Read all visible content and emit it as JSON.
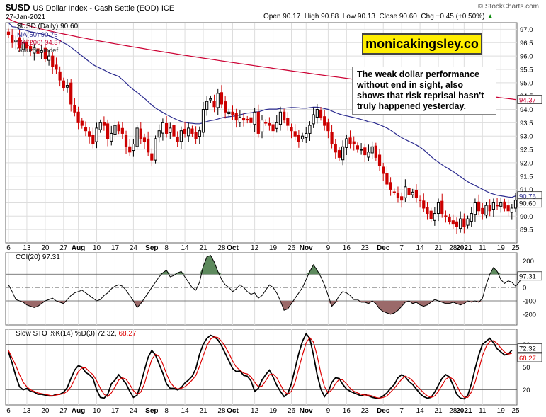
{
  "header": {
    "symbol": "$USD",
    "name": "US Dollar Index - Cash Settle (EOD)",
    "exchange": "ICE",
    "date": "27-Jan-2021",
    "open": "Open 90.17",
    "high": "High 90.88",
    "low": "Low 90.13",
    "close": "Close 90.60",
    "change": "Chg +0.45 (+0.50%)",
    "change_arrow": "▲",
    "watermark": "© StockCharts.com"
  },
  "legend": {
    "main": "$USD (Daily) 90.60",
    "ma50": "MA(50) 90.76",
    "ma200": "MA(200) 94.37",
    "volume": "Volume undef"
  },
  "brand_label": "monicakingsley.co",
  "annotation": "The weak dollar performance without end in sight, also shows that risk reprisal hasn't truly happened yesterday.",
  "colors": {
    "up": "#000000",
    "down": "#cc0000",
    "ma50": "#2b2b8f",
    "ma200": "#cc0033",
    "cci_pos_fill": "#5d8a5d",
    "cci_neg_fill": "#9b6a6a",
    "stoch_k": "#000000",
    "stoch_d": "#dd0000",
    "grid": "#dddddd",
    "price_tag": "#000000"
  },
  "chart_data": [
    {
      "type": "candlestick",
      "title": "$USD (Daily) 90.60",
      "ylim": [
        89.0,
        97.25
      ],
      "yticks": [
        89.5,
        90.0,
        90.5,
        91.0,
        91.5,
        92.0,
        92.5,
        93.0,
        93.5,
        94.0,
        94.5,
        95.0,
        95.5,
        96.0,
        96.5,
        97.0
      ],
      "ytick_labels": [
        "89.5",
        "90.0",
        "90.5",
        "91.0",
        "91.5",
        "92.0",
        "92.5",
        "93.0",
        "93.5",
        "94.0",
        "94.5",
        "95.0",
        "95.5",
        "96.0",
        "96.5",
        "97.0"
      ],
      "x_labels": [
        {
          "i": 0,
          "t": "6"
        },
        {
          "i": 5,
          "t": "13"
        },
        {
          "i": 10,
          "t": "20"
        },
        {
          "i": 15,
          "t": "27"
        },
        {
          "i": 19,
          "t": "Aug"
        },
        {
          "i": 24,
          "t": "10"
        },
        {
          "i": 29,
          "t": "17"
        },
        {
          "i": 34,
          "t": "24"
        },
        {
          "i": 39,
          "t": "Sep"
        },
        {
          "i": 43,
          "t": "8"
        },
        {
          "i": 48,
          "t": "14"
        },
        {
          "i": 53,
          "t": "21"
        },
        {
          "i": 58,
          "t": "28"
        },
        {
          "i": 61,
          "t": "Oct"
        },
        {
          "i": 67,
          "t": "12"
        },
        {
          "i": 72,
          "t": "19"
        },
        {
          "i": 77,
          "t": "26"
        },
        {
          "i": 81,
          "t": "Nov"
        },
        {
          "i": 87,
          "t": "9"
        },
        {
          "i": 92,
          "t": "16"
        },
        {
          "i": 97,
          "t": "23"
        },
        {
          "i": 102,
          "t": "Dec"
        },
        {
          "i": 107,
          "t": "7"
        },
        {
          "i": 112,
          "t": "14"
        },
        {
          "i": 117,
          "t": "21"
        },
        {
          "i": 121,
          "t": "28"
        },
        {
          "i": 124,
          "t": "2021"
        },
        {
          "i": 129,
          "t": "11"
        },
        {
          "i": 134,
          "t": "19"
        },
        {
          "i": 138,
          "t": "25"
        }
      ],
      "closes": [
        96.8,
        96.5,
        96.6,
        96.3,
        96.5,
        96.3,
        96.2,
        96.3,
        96.1,
        96.2,
        95.9,
        96.0,
        95.6,
        95.5,
        95.1,
        94.8,
        94.9,
        94.2,
        93.9,
        93.5,
        93.4,
        93.2,
        93.0,
        92.7,
        93.3,
        93.5,
        93.4,
        92.9,
        93.1,
        93.4,
        93.2,
        93.1,
        92.6,
        92.4,
        92.7,
        93.3,
        92.9,
        92.8,
        92.4,
        92.1,
        92.9,
        93.2,
        93.5,
        93.1,
        93.3,
        93.0,
        92.8,
        93.2,
        93.1,
        93.3,
        93.1,
        92.9,
        93.2,
        94.0,
        94.3,
        94.4,
        94.1,
        94.6,
        94.2,
        93.9,
        93.9,
        93.8,
        93.6,
        93.7,
        93.6,
        93.6,
        93.5,
        93.9,
        93.1,
        93.6,
        93.5,
        93.4,
        93.2,
        93.5,
        93.9,
        93.6,
        93.4,
        93.2,
        93.0,
        92.8,
        93.0,
        93.1,
        93.4,
        93.8,
        94.0,
        93.7,
        93.4,
        93.2,
        92.7,
        92.4,
        92.2,
        92.6,
        92.9,
        92.7,
        92.7,
        92.5,
        92.5,
        92.3,
        92.4,
        92.6,
        92.2,
        91.9,
        91.6,
        91.2,
        91.0,
        90.9,
        90.7,
        90.6,
        91.1,
        90.8,
        90.9,
        90.7,
        90.6,
        90.3,
        90.1,
        89.9,
        90.1,
        90.5,
        90.1,
        90.0,
        89.8,
        89.7,
        89.6,
        89.9,
        89.6,
        89.9,
        90.1,
        90.5,
        90.2,
        90.1,
        90.4,
        90.2,
        90.5,
        90.4,
        90.5,
        90.3,
        90.2,
        90.3,
        90.6
      ],
      "ma50_range": [
        96.8,
        90.76
      ],
      "ma200_range": [
        97.4,
        94.37
      ],
      "last_price_tag": "90.60",
      "ma50_tag": "90.76",
      "ma200_tag": "94.37"
    },
    {
      "type": "line",
      "title": "CCI(20) 97.31",
      "ylim": [
        -280,
        260
      ],
      "yticks": [
        200,
        100,
        0,
        -100,
        -200
      ],
      "ytick_labels": [
        "200",
        "100",
        "0",
        "-100",
        "-200"
      ],
      "values": [
        20,
        -30,
        -90,
        -100,
        -110,
        -130,
        -140,
        -150,
        -140,
        -120,
        -100,
        -90,
        -80,
        -100,
        -110,
        -120,
        -90,
        -60,
        -40,
        -30,
        -20,
        -40,
        -60,
        -80,
        -100,
        -90,
        -60,
        -40,
        -10,
        10,
        20,
        10,
        -20,
        -60,
        -100,
        -150,
        -120,
        -80,
        -40,
        0,
        40,
        80,
        110,
        130,
        80,
        90,
        110,
        120,
        80,
        40,
        0,
        -20,
        40,
        160,
        230,
        240,
        190,
        120,
        60,
        20,
        0,
        -30,
        -10,
        20,
        0,
        -30,
        -50,
        -40,
        -80,
        -60,
        -20,
        20,
        0,
        -40,
        -100,
        -170,
        -160,
        -120,
        -80,
        -40,
        0,
        60,
        120,
        170,
        130,
        80,
        20,
        -60,
        -140,
        -110,
        -60,
        -30,
        -40,
        -60,
        -90,
        -90,
        -110,
        -110,
        -120,
        -100,
        -120,
        -160,
        -180,
        -190,
        -200,
        -190,
        -170,
        -140,
        -110,
        -100,
        -120,
        -110,
        -130,
        -140,
        -130,
        -110,
        -90,
        -100,
        -110,
        -120,
        -120,
        -110,
        -120,
        -130,
        -120,
        -100,
        -110,
        -100,
        -110,
        -80,
        20,
        100,
        150,
        120,
        60,
        30,
        50,
        40,
        10,
        40,
        97.31
      ],
      "last_value_tag": "97.31"
    },
    {
      "type": "line",
      "title": "Slow STO %K(14) %D(3) 72.32, 68.27",
      "ylim": [
        0,
        100
      ],
      "yticks": [
        80,
        50,
        20
      ],
      "ytick_labels": [
        "80",
        "50",
        "20"
      ],
      "series": [
        {
          "name": "%K(14)",
          "values": [
            70,
            55,
            38,
            24,
            20,
            22,
            18,
            17,
            14,
            14,
            13,
            12,
            12,
            14,
            14,
            17,
            23,
            35,
            46,
            52,
            50,
            43,
            40,
            35,
            20,
            10,
            9,
            14,
            28,
            33,
            40,
            34,
            28,
            18,
            10,
            13,
            28,
            46,
            63,
            72,
            66,
            54,
            42,
            28,
            22,
            22,
            20,
            23,
            29,
            33,
            38,
            48,
            67,
            80,
            88,
            92,
            90,
            86,
            78,
            68,
            58,
            48,
            44,
            45,
            39,
            38,
            32,
            18,
            22,
            33,
            40,
            46,
            37,
            26,
            18,
            11,
            15,
            28,
            48,
            68,
            84,
            94,
            88,
            66,
            40,
            21,
            11,
            17,
            30,
            36,
            35,
            27,
            21,
            18,
            16,
            14,
            12,
            14,
            12,
            10,
            9,
            9,
            12,
            16,
            22,
            27,
            36,
            40,
            37,
            31,
            27,
            21,
            15,
            11,
            9,
            10,
            17,
            26,
            35,
            40,
            37,
            26,
            14,
            9,
            8,
            13,
            28,
            48,
            66,
            80,
            84,
            88,
            82,
            74,
            70,
            66,
            67,
            72.32
          ]
        },
        {
          "name": "%D(3)",
          "values": [
            72,
            62,
            52,
            40,
            30,
            24,
            20,
            18,
            16,
            15,
            14,
            13,
            12,
            13,
            14,
            15,
            18,
            24,
            34,
            44,
            49,
            49,
            44,
            40,
            32,
            22,
            14,
            11,
            16,
            24,
            33,
            36,
            34,
            27,
            19,
            14,
            17,
            28,
            45,
            60,
            67,
            64,
            54,
            41,
            30,
            24,
            21,
            22,
            24,
            28,
            33,
            39,
            51,
            65,
            78,
            87,
            90,
            89,
            84,
            77,
            68,
            58,
            50,
            46,
            42,
            41,
            37,
            30,
            24,
            25,
            32,
            40,
            41,
            36,
            27,
            18,
            14,
            18,
            30,
            48,
            66,
            82,
            89,
            83,
            65,
            42,
            24,
            16,
            20,
            28,
            34,
            33,
            28,
            22,
            18,
            16,
            14,
            13,
            13,
            12,
            10,
            9,
            10,
            12,
            17,
            22,
            28,
            34,
            38,
            36,
            32,
            26,
            21,
            16,
            12,
            10,
            12,
            18,
            26,
            34,
            37,
            34,
            26,
            16,
            10,
            10,
            17,
            30,
            47,
            65,
            77,
            84,
            85,
            81,
            75,
            70,
            67,
            68.27
          ]
        }
      ],
      "last_k_tag": "72.32",
      "last_d_tag": "68.27"
    }
  ]
}
